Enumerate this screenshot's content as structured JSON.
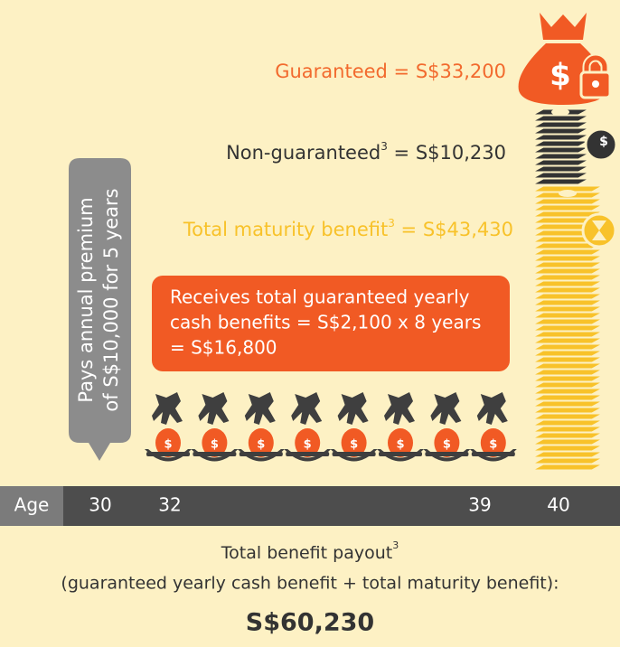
{
  "guaranteed": {
    "label": "Guaranteed = S$33,200"
  },
  "non_guaranteed": {
    "label": "Non-guaranteed",
    "note": "3",
    "value": " = S$10,230"
  },
  "maturity": {
    "label": "Total maturity benefit",
    "note": "3",
    "value": " = S$43,430"
  },
  "premium": {
    "lines": [
      "Pays annual premium",
      "of S$10,000 for 5 years"
    ]
  },
  "cash_benefit": {
    "lines": [
      "Receives total guaranteed yearly",
      "cash benefits = S$2,100 x 8 years",
      "= S$16,800"
    ]
  },
  "icons": {
    "coin_symbol": "$"
  },
  "age_bar": {
    "label": "Age",
    "ages": [
      "30",
      "32",
      "39",
      "40"
    ]
  },
  "total": {
    "label": "Total benefit payout",
    "note": "3",
    "formula": "(guaranteed yearly cash benefit + total maturity benefit):",
    "amount": "S$60,230"
  }
}
